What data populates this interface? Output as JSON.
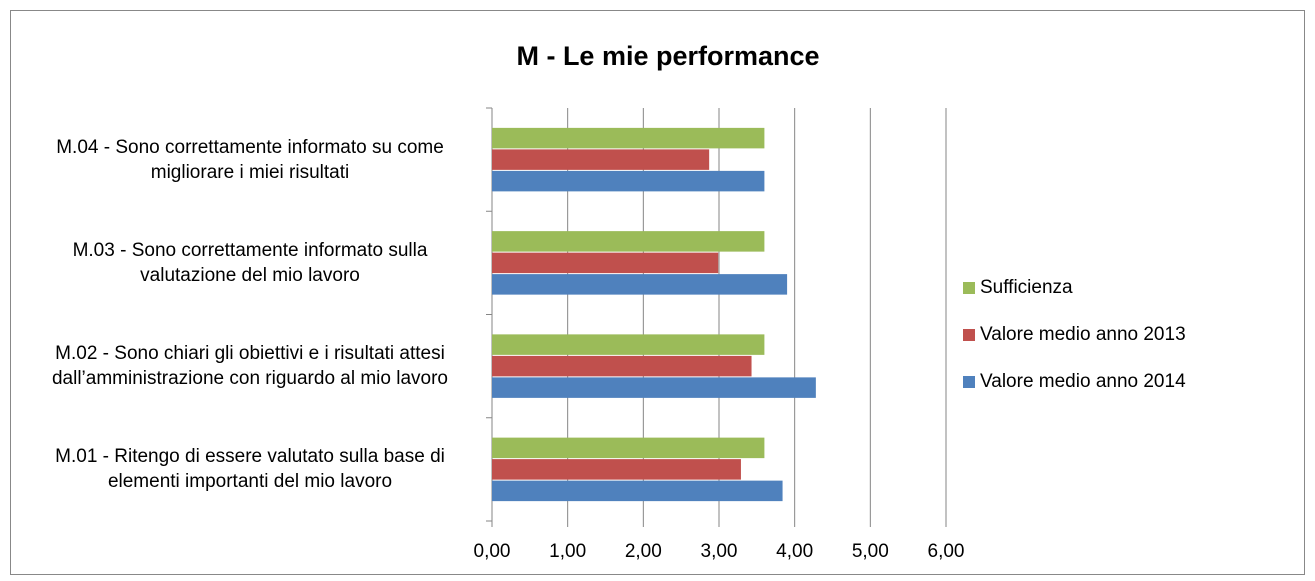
{
  "chart_data": {
    "type": "hbar",
    "title": "M - Le mie performance",
    "categories": [
      "M.01 - Ritengo di essere valutato sulla base di elementi importanti del mio lavoro",
      "M.02 - Sono chiari gli obiettivi e i risultati attesi dall’amministrazione con riguardo al mio lavoro",
      "M.03 - Sono correttamente informato sulla valutazione del mio lavoro",
      "M.04 - Sono correttamente informato su come migliorare i miei risultati"
    ],
    "series": [
      {
        "name": "Sufficienza",
        "color": "#9bbb59",
        "values": [
          3.6,
          3.6,
          3.6,
          3.6
        ]
      },
      {
        "name": "Valore medio anno 2013",
        "color": "#c0504d",
        "values": [
          3.29,
          3.43,
          2.99,
          2.87
        ]
      },
      {
        "name": "Valore medio anno 2014",
        "color": "#4f81bd",
        "values": [
          3.84,
          4.28,
          3.9,
          3.6
        ]
      }
    ],
    "xlim": [
      0,
      6
    ],
    "xticks": [
      {
        "value": 0,
        "label": "0,00"
      },
      {
        "value": 1,
        "label": "1,00"
      },
      {
        "value": 2,
        "label": "2,00"
      },
      {
        "value": 3,
        "label": "3,00"
      },
      {
        "value": 4,
        "label": "4,00"
      },
      {
        "value": 5,
        "label": "5,00"
      },
      {
        "value": 6,
        "label": "6,00"
      }
    ],
    "grid": true,
    "legend": "right"
  }
}
